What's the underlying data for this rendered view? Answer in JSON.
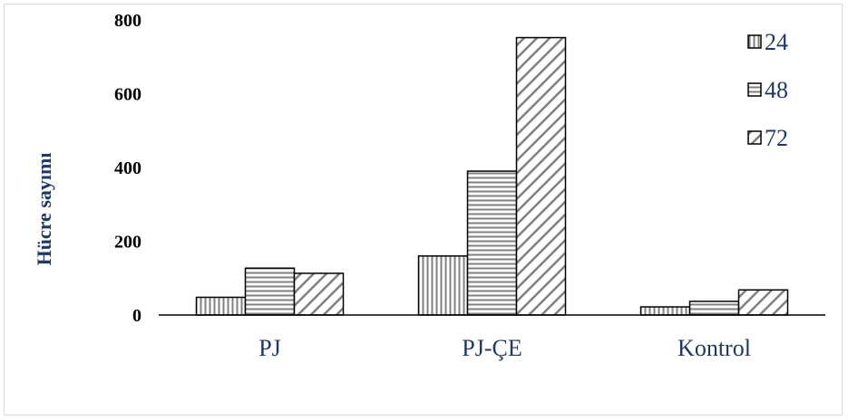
{
  "chart_data": {
    "type": "bar",
    "title": "",
    "xlabel": "",
    "ylabel": "Hücre sayımı",
    "categories": [
      "PJ",
      "PJ-ÇE",
      "Kontrol"
    ],
    "ylim": [
      0,
      800
    ],
    "yticks": [
      0,
      200,
      400,
      600,
      800
    ],
    "grid": false,
    "legend": "top-right",
    "series": [
      {
        "name": "24",
        "pattern": "vertical-lines",
        "values": [
          48,
          160,
          22
        ]
      },
      {
        "name": "48",
        "pattern": "horizontal-lines",
        "values": [
          127,
          390,
          37
        ]
      },
      {
        "name": "72",
        "pattern": "diagonal-lines",
        "values": [
          113,
          752,
          68
        ]
      }
    ],
    "colors": {
      "text_accent": "#1f3864",
      "bar_fill": "#ffffff",
      "pattern_stroke": "#808080",
      "bar_outline": "#000000"
    }
  }
}
